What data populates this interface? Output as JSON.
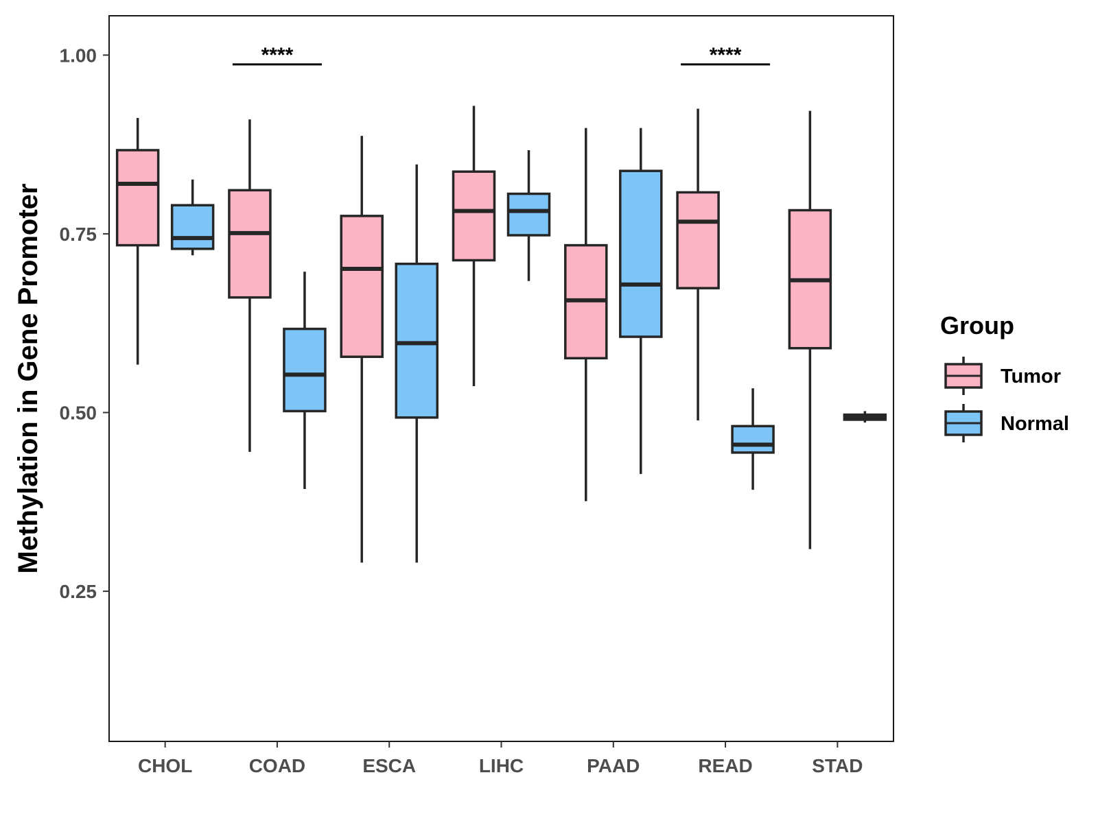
{
  "chart_data": {
    "type": "boxplot",
    "title": "",
    "xlabel": "",
    "ylabel": "Methylation in Gene Promoter",
    "ylim": [
      0.04,
      1.055
    ],
    "yticks": [
      0.25,
      0.5,
      0.75,
      1.0
    ],
    "ytick_labels": [
      "0.25",
      "0.50",
      "0.75",
      "1.00"
    ],
    "categories": [
      "CHOL",
      "COAD",
      "ESCA",
      "LIHC",
      "PAAD",
      "READ",
      "STAD"
    ],
    "legend": {
      "title": "Group",
      "position": "right",
      "entries": [
        {
          "name": "Tumor",
          "color": "#FBB4C4"
        },
        {
          "name": "Normal",
          "color": "#7DC4F7"
        }
      ]
    },
    "series": [
      {
        "name": "Tumor",
        "color": "#FBB4C4",
        "boxes": [
          {
            "category": "CHOL",
            "min": 0.567,
            "q1": 0.734,
            "median": 0.82,
            "q3": 0.867,
            "max": 0.912
          },
          {
            "category": "COAD",
            "min": 0.445,
            "q1": 0.661,
            "median": 0.751,
            "q3": 0.811,
            "max": 0.91
          },
          {
            "category": "ESCA",
            "min": 0.29,
            "q1": 0.578,
            "median": 0.701,
            "q3": 0.775,
            "max": 0.887
          },
          {
            "category": "LIHC",
            "min": 0.537,
            "q1": 0.713,
            "median": 0.782,
            "q3": 0.837,
            "max": 0.929
          },
          {
            "category": "PAAD",
            "min": 0.376,
            "q1": 0.576,
            "median": 0.657,
            "q3": 0.734,
            "max": 0.898
          },
          {
            "category": "READ",
            "min": 0.489,
            "q1": 0.674,
            "median": 0.767,
            "q3": 0.808,
            "max": 0.925
          },
          {
            "category": "STAD",
            "min": 0.309,
            "q1": 0.59,
            "median": 0.685,
            "q3": 0.783,
            "max": 0.922
          }
        ]
      },
      {
        "name": "Normal",
        "color": "#7DC4F7",
        "boxes": [
          {
            "category": "CHOL",
            "min": 0.72,
            "q1": 0.729,
            "median": 0.744,
            "q3": 0.79,
            "max": 0.826
          },
          {
            "category": "COAD",
            "min": 0.393,
            "q1": 0.502,
            "median": 0.553,
            "q3": 0.617,
            "max": 0.697
          },
          {
            "category": "ESCA",
            "min": 0.29,
            "q1": 0.493,
            "median": 0.597,
            "q3": 0.708,
            "max": 0.847
          },
          {
            "category": "LIHC",
            "min": 0.684,
            "q1": 0.748,
            "median": 0.782,
            "q3": 0.806,
            "max": 0.867
          },
          {
            "category": "PAAD",
            "min": 0.414,
            "q1": 0.606,
            "median": 0.679,
            "q3": 0.838,
            "max": 0.898
          },
          {
            "category": "READ",
            "min": 0.392,
            "q1": 0.444,
            "median": 0.455,
            "q3": 0.481,
            "max": 0.534
          },
          {
            "category": "STAD",
            "min": 0.486,
            "q1": 0.49,
            "median": 0.493,
            "q3": 0.497,
            "max": 0.502
          }
        ]
      }
    ],
    "annotations": [
      {
        "category": "COAD",
        "text": "****",
        "y": 0.987
      },
      {
        "category": "READ",
        "text": "****",
        "y": 0.987
      }
    ]
  }
}
